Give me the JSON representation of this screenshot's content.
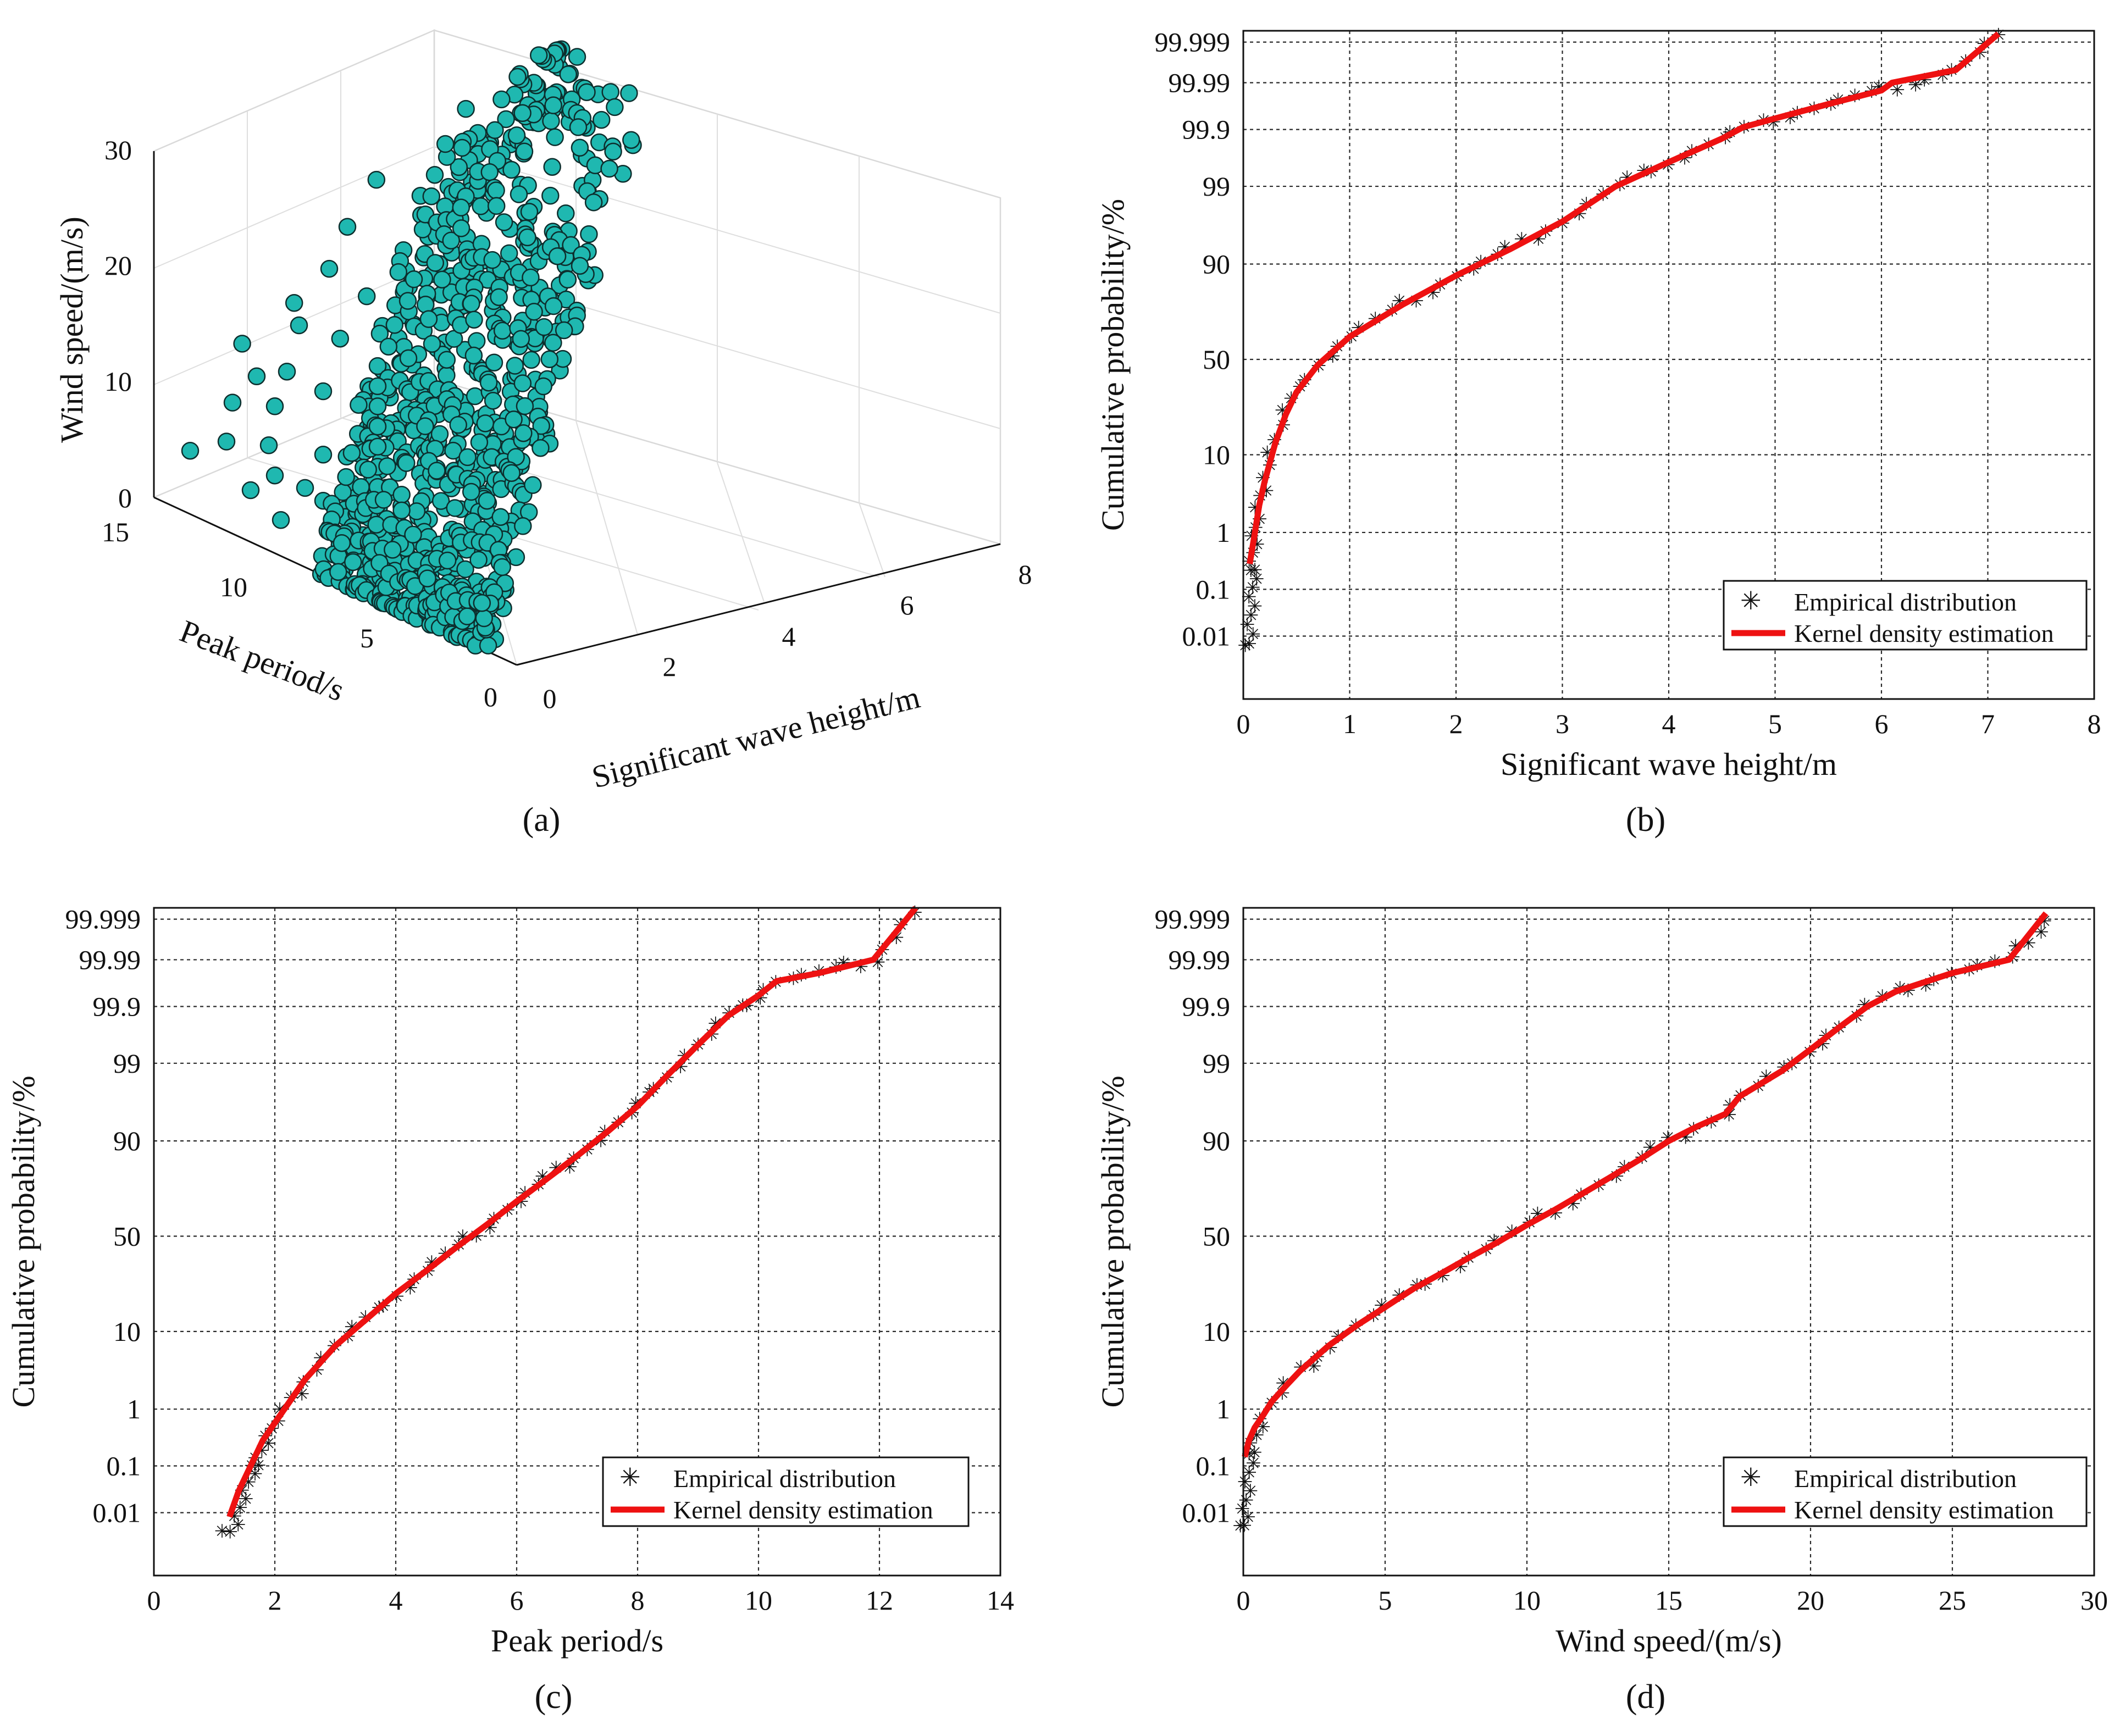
{
  "colors": {
    "kde": "#ee1111",
    "empirical": "#555555",
    "scatter_fill": "#1fb8b0",
    "scatter_edge": "#0d2e2d",
    "grid": "#2a2a2a"
  },
  "chart_data": [
    {
      "panel": "a",
      "type": "scatter",
      "projection": "3d",
      "xlabel": "Significant wave height/m",
      "ylabel": "Peak period/s",
      "zlabel": "Wind speed/(m/s)",
      "x_ticks": [
        "0",
        "2",
        "4",
        "6",
        "8"
      ],
      "y_ticks": [
        "0",
        "5",
        "10",
        "15"
      ],
      "z_ticks": [
        "0",
        "10",
        "20",
        "30"
      ],
      "xlim": [
        0,
        8
      ],
      "ylim": [
        0,
        15
      ],
      "zlim": [
        0,
        30
      ],
      "points": [
        [
          0.2,
          3.0,
          1.0
        ],
        [
          0.3,
          4.0,
          2.5
        ],
        [
          0.4,
          5.0,
          3.5
        ],
        [
          0.5,
          6.0,
          4.0
        ],
        [
          0.6,
          6.5,
          5.0
        ],
        [
          0.8,
          7.5,
          6.0
        ],
        [
          0.9,
          8.0,
          6.5
        ],
        [
          1.1,
          8.5,
          7.5
        ],
        [
          1.3,
          9.0,
          8.5
        ],
        [
          1.5,
          9.5,
          9.5
        ],
        [
          1.7,
          10.0,
          10.5
        ],
        [
          1.9,
          10.5,
          11.5
        ],
        [
          2.1,
          11.0,
          12.5
        ],
        [
          2.4,
          11.3,
          13.5
        ],
        [
          2.7,
          11.8,
          14.5
        ],
        [
          3.0,
          12.0,
          16.0
        ],
        [
          3.3,
          12.5,
          17.0
        ],
        [
          3.6,
          12.8,
          18.5
        ],
        [
          4.0,
          13.0,
          19.5
        ],
        [
          4.4,
          13.3,
          21.0
        ],
        [
          4.8,
          13.6,
          22.5
        ],
        [
          5.2,
          13.8,
          23.5
        ],
        [
          5.6,
          14.0,
          25.0
        ],
        [
          6.0,
          14.3,
          26.0
        ],
        [
          6.4,
          14.5,
          27.0
        ],
        [
          6.8,
          14.8,
          28.0
        ],
        [
          7.0,
          15.0,
          29.0
        ],
        [
          0.5,
          10.0,
          5.0
        ],
        [
          0.7,
          12.0,
          6.5
        ],
        [
          0.6,
          13.5,
          5.5
        ],
        [
          0.4,
          14.5,
          4.0
        ],
        [
          1.0,
          12.5,
          9.0
        ],
        [
          1.4,
          13.0,
          11.0
        ],
        [
          1.8,
          13.5,
          14.0
        ],
        [
          2.5,
          14.0,
          17.5
        ],
        [
          3.0,
          14.5,
          20.0
        ],
        [
          3.6,
          14.8,
          23.0
        ],
        [
          0.3,
          8.0,
          1.5
        ],
        [
          0.5,
          9.0,
          2.5
        ],
        [
          0.8,
          10.0,
          3.5
        ],
        [
          1.2,
          11.0,
          6.0
        ],
        [
          0.2,
          6.0,
          0.8
        ],
        [
          0.4,
          12.0,
          3.0
        ],
        [
          1.6,
          12.0,
          10.0
        ],
        [
          2.2,
          12.8,
          13.0
        ],
        [
          2.8,
          13.2,
          15.5
        ],
        [
          4.5,
          14.2,
          25.5
        ],
        [
          5.0,
          14.6,
          27.5
        ],
        [
          0.9,
          14.0,
          8.0
        ],
        [
          1.3,
          14.6,
          12.0
        ],
        [
          0.7,
          5.5,
          2.0
        ],
        [
          1.0,
          6.5,
          3.0
        ],
        [
          1.4,
          7.5,
          4.5
        ],
        [
          1.8,
          8.5,
          6.0
        ],
        [
          2.2,
          9.5,
          8.0
        ],
        [
          2.6,
          10.5,
          10.0
        ],
        [
          3.2,
          11.5,
          12.5
        ],
        [
          3.8,
          12.2,
          15.5
        ],
        [
          4.3,
          12.8,
          18.0
        ],
        [
          0.3,
          10.5,
          2.0
        ],
        [
          0.6,
          11.5,
          4.5
        ],
        [
          1.1,
          13.5,
          10.5
        ],
        [
          2.0,
          14.2,
          15.0
        ],
        [
          0.5,
          3.5,
          0.5
        ],
        [
          0.8,
          4.5,
          1.0
        ],
        [
          1.2,
          5.5,
          1.5
        ]
      ]
    },
    {
      "panel": "b",
      "type": "line",
      "yscale": "normal-probability",
      "xlabel": "Significant wave height/m",
      "ylabel": "Cumulative probability/%",
      "xlim": [
        0,
        8
      ],
      "x_ticks": [
        "0",
        "1",
        "2",
        "3",
        "4",
        "5",
        "6",
        "7",
        "8"
      ],
      "y_ticks": [
        "0.01",
        "0.1",
        "1",
        "10",
        "50",
        "90",
        "99",
        "99.9",
        "99.99",
        "99.999"
      ],
      "series": [
        {
          "name": "Empirical distribution",
          "style": "markers",
          "x": [
            0.06,
            0.07,
            0.08,
            0.1,
            0.12,
            0.15,
            0.2,
            0.3,
            0.4,
            0.5,
            0.7,
            1.0,
            1.5,
            2.0,
            2.5,
            3.0,
            3.5,
            4.0,
            4.5,
            4.7,
            5.0,
            5.5,
            6.0,
            6.7,
            7.1
          ],
          "y": [
            0.005,
            0.02,
            0.1,
            0.5,
            1.5,
            3,
            6,
            14,
            24,
            34,
            48,
            62,
            77,
            87,
            93,
            96.8,
            99,
            99.6,
            99.85,
            99.9,
            99.94,
            99.97,
            99.985,
            99.995,
            99.9992
          ]
        },
        {
          "name": "Kernel density estimation",
          "style": "line",
          "x": [
            0.06,
            0.08,
            0.1,
            0.15,
            0.2,
            0.3,
            0.4,
            0.5,
            0.7,
            1.0,
            1.5,
            2.0,
            2.5,
            3.0,
            3.5,
            4.0,
            4.5,
            4.7,
            5.0,
            5.5,
            6.0,
            6.1,
            6.7,
            7.1
          ],
          "y": [
            0.3,
            0.5,
            0.8,
            2.5,
            5,
            13,
            23,
            33,
            47,
            62,
            77,
            87,
            93,
            96.8,
            99,
            99.6,
            99.85,
            99.91,
            99.94,
            99.97,
            99.985,
            99.99,
            99.995,
            99.9994
          ]
        }
      ],
      "legend": {
        "position": "bottom-right",
        "entries": [
          "Empirical distribution",
          "Kernel density estimation"
        ]
      }
    },
    {
      "panel": "c",
      "type": "line",
      "yscale": "normal-probability",
      "xlabel": "Peak period/s",
      "ylabel": "Cumulative probability/%",
      "xlim": [
        0,
        14
      ],
      "x_ticks": [
        "0",
        "2",
        "4",
        "6",
        "8",
        "10",
        "12",
        "14"
      ],
      "y_ticks": [
        "0.01",
        "0.1",
        "1",
        "10",
        "50",
        "90",
        "99",
        "99.9",
        "99.99",
        "99.999"
      ],
      "series": [
        {
          "name": "Empirical distribution",
          "style": "markers",
          "x": [
            1.2,
            1.35,
            1.5,
            1.7,
            2.0,
            2.5,
            3.0,
            3.5,
            4.0,
            4.5,
            5.0,
            5.5,
            6.0,
            6.5,
            7.0,
            7.5,
            8.0,
            8.5,
            9.0,
            9.5,
            10.0,
            10.3,
            11.0,
            11.9,
            12.6
          ],
          "y": [
            0.003,
            0.006,
            0.03,
            0.12,
            0.6,
            2.7,
            7,
            13,
            22,
            32,
            44,
            56,
            68,
            78,
            86,
            92,
            96,
            98.5,
            99.5,
            99.85,
            99.94,
            99.97,
            99.98,
            99.99,
            99.9993
          ]
        },
        {
          "name": "Kernel density estimation",
          "style": "line",
          "x": [
            1.25,
            1.4,
            1.6,
            1.8,
            2.0,
            2.5,
            3.0,
            3.5,
            4.0,
            4.5,
            5.0,
            5.5,
            6.0,
            6.5,
            7.0,
            7.5,
            8.0,
            8.5,
            9.0,
            9.5,
            10.0,
            10.3,
            11.0,
            11.9,
            12.6
          ],
          "y": [
            0.008,
            0.03,
            0.1,
            0.3,
            0.6,
            2.7,
            7,
            13,
            22,
            32,
            44,
            56,
            68,
            78,
            86,
            92,
            96,
            98.5,
            99.5,
            99.85,
            99.94,
            99.97,
            99.98,
            99.99,
            99.9995
          ]
        }
      ],
      "legend": {
        "position": "bottom-right",
        "entries": [
          "Empirical distribution",
          "Kernel density estimation"
        ]
      }
    },
    {
      "panel": "d",
      "type": "line",
      "yscale": "normal-probability",
      "xlabel": "Wind speed/(m/s)",
      "ylabel": "Cumulative probability/%",
      "xlim": [
        0,
        30
      ],
      "x_ticks": [
        "0",
        "5",
        "10",
        "15",
        "20",
        "25",
        "30"
      ],
      "y_ticks": [
        "0.01",
        "0.1",
        "1",
        "10",
        "50",
        "90",
        "99",
        "99.9",
        "99.99",
        "99.999"
      ],
      "series": [
        {
          "name": "Empirical distribution",
          "style": "markers",
          "x": [
            0.05,
            0.1,
            0.2,
            0.4,
            0.7,
            1,
            1.5,
            2,
            3,
            4,
            5,
            6,
            7,
            8,
            9,
            10,
            11,
            12,
            13,
            14,
            15,
            16,
            17,
            17.5,
            18,
            19,
            20,
            21,
            22,
            23,
            25,
            27,
            28.3
          ],
          "y": [
            0.004,
            0.02,
            0.1,
            0.3,
            0.7,
            1.2,
            2.2,
            3.5,
            7,
            11.5,
            17,
            24,
            31,
            39,
            47,
            56,
            64,
            72,
            79,
            85,
            90,
            93,
            95,
            97,
            97.7,
            98.7,
            99.4,
            99.75,
            99.9,
            99.95,
            99.98,
            99.99,
            99.999
          ]
        },
        {
          "name": "Kernel density estimation",
          "style": "line",
          "x": [
            0.05,
            0.2,
            0.4,
            0.7,
            1,
            1.5,
            2,
            3,
            4,
            5,
            6,
            7,
            8,
            9,
            10,
            11,
            12,
            13,
            14,
            15,
            16,
            17,
            17.5,
            18,
            19,
            20,
            21,
            22,
            23,
            25,
            27,
            28.3
          ],
          "y": [
            0.15,
            0.3,
            0.5,
            0.8,
            1.3,
            2.2,
            3.5,
            7,
            11.5,
            17,
            24,
            31,
            39,
            47,
            56,
            64,
            72,
            79,
            85,
            90,
            93,
            95,
            97,
            97.7,
            98.7,
            99.4,
            99.75,
            99.9,
            99.95,
            99.98,
            99.99,
            99.9993
          ]
        }
      ],
      "legend": {
        "position": "bottom-right",
        "entries": [
          "Empirical distribution",
          "Kernel density estimation"
        ]
      }
    }
  ],
  "panel_labels": [
    "(a)",
    "(b)",
    "(c)",
    "(d)"
  ]
}
